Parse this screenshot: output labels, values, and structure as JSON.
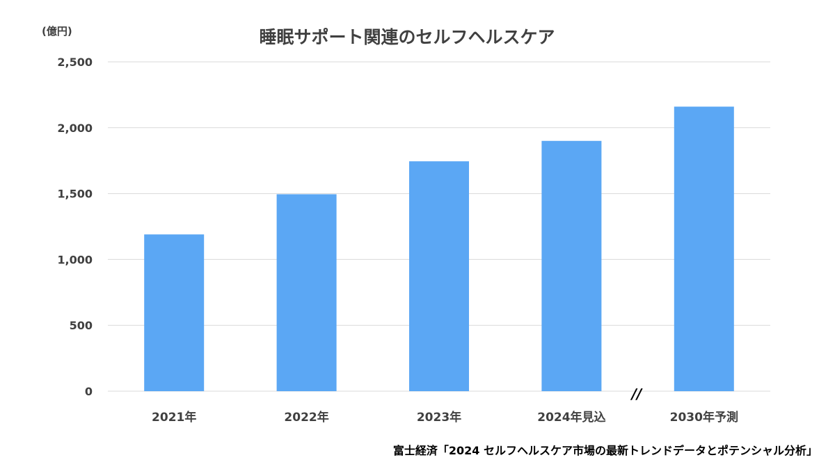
{
  "chart_data": {
    "type": "bar",
    "title": "睡眠サポート関連のセルフヘルスケア",
    "unit_label": "(億円)",
    "categories": [
      "2021年",
      "2022年",
      "2023年",
      "2024年見込",
      "2030年予測"
    ],
    "values": [
      1190,
      1495,
      1745,
      1900,
      2160
    ],
    "ylim": [
      0,
      2500
    ],
    "yticks": [
      0,
      500,
      1000,
      1500,
      2000,
      2500
    ],
    "ytick_labels": [
      "0",
      "500",
      "1,000",
      "1,500",
      "2,000",
      "2,500"
    ],
    "axis_break_label": "//",
    "grid": true,
    "bar_color": "#5BA7F4",
    "grid_color": "#D9D9D9",
    "source": "富士経済「2024 セルフヘルスケア市場の最新トレンドデータとポテンシャル分析」"
  }
}
